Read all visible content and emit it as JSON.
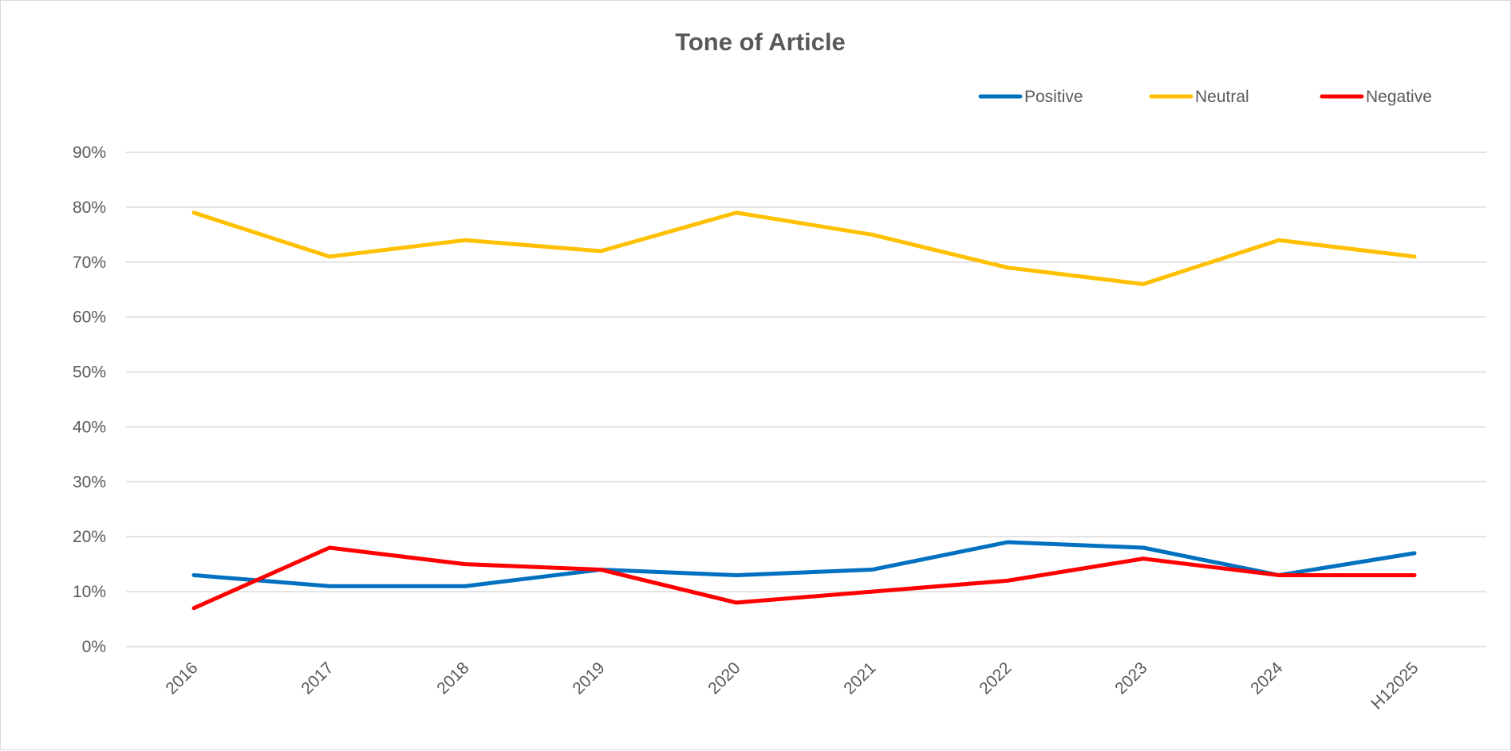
{
  "chart_data": {
    "type": "line",
    "title": "Tone of Article",
    "xlabel": "",
    "ylabel": "",
    "categories": [
      "2016",
      "2017",
      "2018",
      "2019",
      "2020",
      "2021",
      "2022",
      "2023",
      "2024",
      "H12025"
    ],
    "ylim": [
      0,
      90
    ],
    "yticks": [
      0,
      10,
      20,
      30,
      40,
      50,
      60,
      70,
      80,
      90
    ],
    "ytick_suffix": "%",
    "grid": true,
    "legend_position": "top-right",
    "series": [
      {
        "name": "Positive",
        "color": "#0070c0",
        "values": [
          13,
          11,
          11,
          14,
          13,
          14,
          19,
          18,
          13,
          17
        ]
      },
      {
        "name": "Neutral",
        "color": "#ffc000",
        "values": [
          79,
          71,
          74,
          72,
          79,
          75,
          69,
          66,
          74,
          71
        ]
      },
      {
        "name": "Negative",
        "color": "#ff0000",
        "values": [
          7,
          18,
          15,
          14,
          8,
          10,
          12,
          16,
          13,
          13
        ]
      }
    ]
  }
}
